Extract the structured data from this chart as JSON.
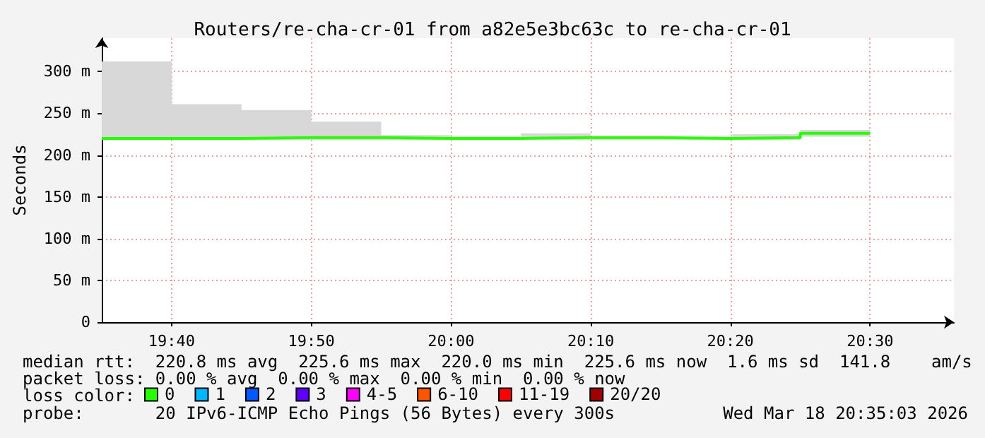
{
  "chart_data": {
    "type": "step",
    "title": "Routers/re-cha-cr-01 from a82e5e3bc63c to re-cha-cr-01",
    "ylabel": "Seconds",
    "x": [
      19.5833,
      19.6667,
      19.75,
      19.8333,
      19.9167,
      20,
      20.0833,
      20.1667,
      20.25,
      20.3333,
      20.4167,
      20.5
    ],
    "series": [
      {
        "name": "0",
        "color": "#26ff00",
        "values": [
          220,
          220,
          221,
          221,
          220,
          220,
          221,
          221,
          220,
          221,
          226,
          226
        ],
        "lower": [
          218,
          218,
          218,
          218,
          218,
          218,
          218,
          218,
          218,
          218,
          222,
          222
        ],
        "upper": [
          312,
          261,
          254,
          240,
          224,
          222,
          226,
          222,
          221,
          225,
          230,
          230
        ]
      },
      {
        "name": "1",
        "color": "#00b8ff",
        "values": [
          null,
          null,
          null,
          null,
          null,
          null,
          null,
          null,
          null,
          null,
          null,
          null
        ]
      },
      {
        "name": "2",
        "color": "#0059ff",
        "values": [
          null,
          null,
          null,
          null,
          null,
          null,
          null,
          null,
          null,
          null,
          null,
          null
        ]
      },
      {
        "name": "3",
        "color": "#5e00ff",
        "values": [
          null,
          null,
          null,
          null,
          null,
          null,
          null,
          null,
          null,
          null,
          null,
          null
        ]
      },
      {
        "name": "4-5",
        "color": "#ff00ff",
        "values": [
          null,
          null,
          null,
          null,
          null,
          null,
          null,
          null,
          null,
          null,
          null,
          null
        ]
      },
      {
        "name": "6-10",
        "color": "#ff5500",
        "values": [
          null,
          null,
          null,
          null,
          null,
          null,
          null,
          null,
          null,
          null,
          null,
          null
        ]
      },
      {
        "name": "11-19",
        "color": "#ff0000",
        "values": [
          null,
          null,
          null,
          null,
          null,
          null,
          null,
          null,
          null,
          null,
          null,
          null
        ]
      },
      {
        "name": "20/20",
        "color": "#a10000",
        "values": [
          null,
          null,
          null,
          null,
          null,
          null,
          null,
          null,
          null,
          null,
          null,
          null
        ]
      }
    ],
    "legend_title": "loss color:",
    "legend": "bottom",
    "xlim": [
      19.5833,
      20.6
    ],
    "xticks": [
      {
        "value": 19.6667,
        "label": "19:40"
      },
      {
        "value": 19.8333,
        "label": "19:50"
      },
      {
        "value": 20,
        "label": "20:00"
      },
      {
        "value": 20.1667,
        "label": "20:10"
      },
      {
        "value": 20.3333,
        "label": "20:20"
      },
      {
        "value": 20.5,
        "label": "20:30"
      }
    ],
    "ylim": [
      0,
      340
    ],
    "yticks": [
      0,
      {
        "value": 50,
        "label": "50 m"
      },
      {
        "value": 100,
        "label": "100 m"
      },
      {
        "value": 150,
        "label": "150 m"
      },
      {
        "value": 200,
        "label": "200 m"
      },
      {
        "value": 250,
        "label": "250 m"
      },
      {
        "value": 300,
        "label": "300 m"
      }
    ],
    "grid": true,
    "annotations": [
      "median rtt:  220.8 ms avg  225.6 ms max  220.0 ms min  225.6 ms now  1.6 ms sd  141.8    am/s",
      "packet loss: 0.00 % avg  0.00 % max  0.00 % min  0.00 % now",
      "probe:       20 IPv6-ICMP Echo Pings (56 Bytes) every 300s",
      "Wed Mar 18 20:35:03 2026"
    ]
  }
}
